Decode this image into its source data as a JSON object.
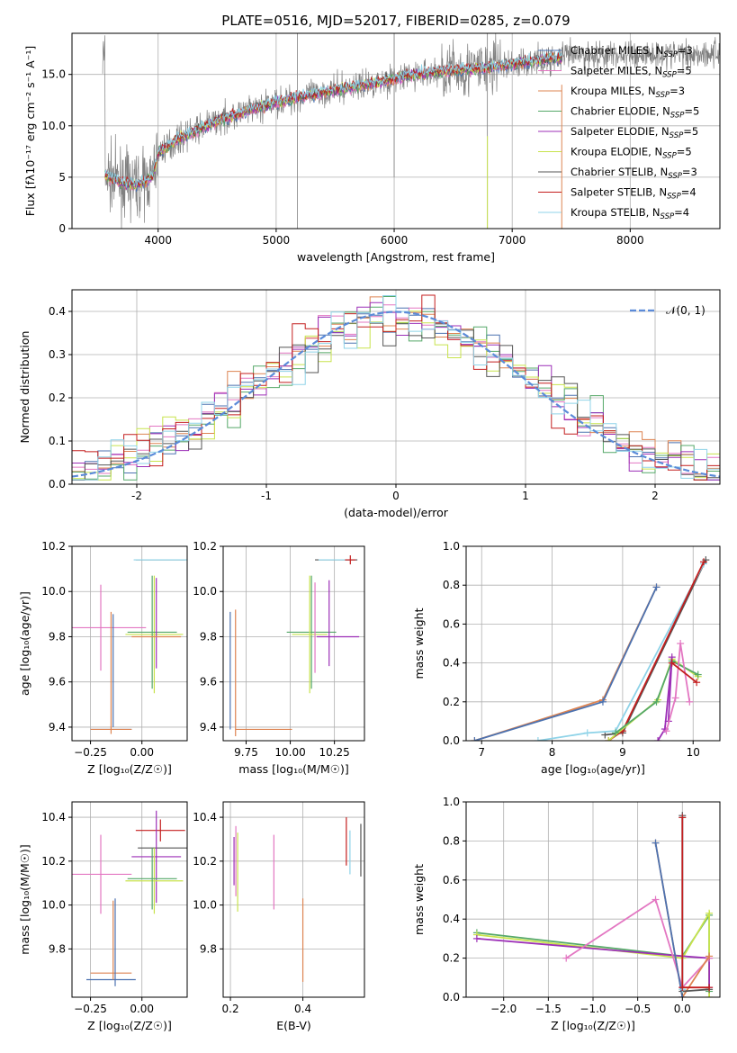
{
  "figure_title": "PLATE=0516, MJD=52017, FIBERID=0285, z=0.079",
  "colors": {
    "ChabrierMILES": "#4c72b0",
    "SalpeterMILES": "#e377c2",
    "KroupaMILES": "#dd8452",
    "ChabrierELODIE": "#55a868",
    "SalpeterELODIE": "#9c2fb7",
    "KroupaELODIE": "#c8e34d",
    "ChabrierSTELIB": "#555555",
    "SalpeterSTELIB": "#c41e1e",
    "KroupaSTELIB": "#8fd3e8",
    "data": "#808080",
    "normal": "#5b8bd9"
  },
  "models": [
    {
      "key": "ChabrierMILES",
      "label": "Chabrier MILES, N",
      "n": "=3"
    },
    {
      "key": "SalpeterMILES",
      "label": "Salpeter MILES, N",
      "n": "=5"
    },
    {
      "key": "KroupaMILES",
      "label": "Kroupa MILES, N",
      "n": "=3"
    },
    {
      "key": "ChabrierELODIE",
      "label": "Chabrier ELODIE, N",
      "n": "=5"
    },
    {
      "key": "SalpeterELODIE",
      "label": "Salpeter ELODIE, N",
      "n": "=5"
    },
    {
      "key": "KroupaELODIE",
      "label": "Kroupa ELODIE, N",
      "n": "=5"
    },
    {
      "key": "ChabrierSTELIB",
      "label": "Chabrier STELIB, N",
      "n": "=3"
    },
    {
      "key": "SalpeterSTELIB",
      "label": "Salpeter STELIB, N",
      "n": "=4"
    },
    {
      "key": "KroupaSTELIB",
      "label": "Kroupa STELIB, N",
      "n": "=4"
    }
  ],
  "legend_sub": "SSP",
  "chart_data": [
    {
      "id": "spectrum",
      "type": "line",
      "xlabel": "wavelength [Angstrom, rest frame]",
      "ylabel": "Flux [fλ10⁻¹⁷ erg cm⁻² s⁻¹ A⁻¹]",
      "xlim": [
        3270,
        8760
      ],
      "ylim": [
        0,
        19
      ],
      "xticks": [
        4000,
        5000,
        6000,
        7000,
        8000
      ],
      "yticks": [
        0,
        5,
        10,
        15
      ],
      "legend": "top-right",
      "continuum": {
        "x": [
          3550,
          3700,
          3850,
          3950,
          4000,
          4150,
          4300,
          4500,
          4750,
          5000,
          5250,
          5500,
          5750,
          6000,
          6250,
          6500,
          6750,
          7000,
          7250,
          7420
        ],
        "y": [
          5.2,
          4.4,
          4.3,
          5.0,
          7.4,
          8.6,
          9.4,
          10.5,
          11.4,
          12.3,
          12.9,
          13.5,
          14.0,
          14.6,
          15.1,
          15.4,
          15.6,
          16.0,
          16.4,
          16.6
        ]
      },
      "model_range": [
        3550,
        7420
      ],
      "data_range": [
        3530,
        8760
      ]
    },
    {
      "id": "residuals",
      "type": "bar",
      "xlabel": "(data-model)/error",
      "ylabel": "Normed distribution",
      "xlim": [
        -2.5,
        2.5
      ],
      "ylim": [
        0,
        0.45
      ],
      "xticks": [
        -2,
        -1,
        0,
        1,
        2
      ],
      "yticks": [
        0.0,
        0.1,
        0.2,
        0.3,
        0.4
      ],
      "legend_label": "𝒩(0, 1)",
      "bin_width": 0.1
    },
    {
      "id": "age-vs-Z",
      "type": "scatter",
      "xlabel": "Z [log₁₀(Z/Z☉)]",
      "ylabel": "age  [log₁₀(age/yr)]",
      "xlim": [
        -0.34,
        0.22
      ],
      "ylim": [
        9.34,
        10.2
      ],
      "xticks": [
        -0.25,
        0.0
      ],
      "xticklabels": [
        "−0.25",
        "0.00"
      ],
      "yticks": [
        9.4,
        9.6,
        9.8,
        10.0,
        10.2
      ],
      "points": [
        {
          "m": "SalpeterMILES",
          "x": -0.2,
          "y": 9.84,
          "xe": 0.22,
          "ye": 0.19
        },
        {
          "m": "ChabrierMILES",
          "x": -0.15,
          "y": 9.39,
          "xe": 0.1,
          "ye": 0
        },
        {
          "m": "KroupaMILES",
          "x": -0.15,
          "y": 9.39,
          "xe": 0.1,
          "ye": 0
        },
        {
          "m": "ChabrierMILES",
          "x": -0.14,
          "y": 9.65,
          "xe": 0,
          "ye": 0.25
        },
        {
          "m": "KroupaMILES",
          "x": -0.15,
          "y": 9.64,
          "xe": 0,
          "ye": 0.27
        },
        {
          "m": "ChabrierSTELIB",
          "x": 0.09,
          "y": 10.14,
          "xe": 0.12,
          "ye": 0
        },
        {
          "m": "KroupaSTELIB",
          "x": 0.09,
          "y": 10.14,
          "xe": 0.13,
          "ye": 0
        },
        {
          "m": "KroupaELODIE",
          "x": 0.06,
          "y": 9.81,
          "xe": 0.14,
          "ye": 0.26
        },
        {
          "m": "ChabrierELODIE",
          "x": 0.05,
          "y": 9.82,
          "xe": 0.12,
          "ye": 0.25
        },
        {
          "m": "SalpeterELODIE",
          "x": 0.07,
          "y": 9.86,
          "xe": 0,
          "ye": 0.2
        },
        {
          "m": "KroupaMILES",
          "x": 0.07,
          "y": 9.8,
          "xe": 0.12,
          "ye": 0
        }
      ]
    },
    {
      "id": "age-vs-mass",
      "type": "scatter",
      "xlabel": "mass [log₁₀(M/M☉)]",
      "ylabel": "",
      "xlim": [
        9.62,
        10.42
      ],
      "ylim": [
        9.34,
        10.2
      ],
      "xticks": [
        9.75,
        10.0,
        10.25
      ],
      "xticklabels": [
        "9.75",
        "10.00",
        "10.25"
      ],
      "yticks": [
        9.4,
        9.6,
        9.8,
        10.0,
        10.2
      ],
      "points": [
        {
          "m": "ChabrierMILES",
          "x": 9.66,
          "y": 9.65,
          "xe": 0,
          "ye": 0.26
        },
        {
          "m": "KroupaMILES",
          "x": 9.69,
          "y": 9.64,
          "xe": 0,
          "ye": 0.28
        },
        {
          "m": "KroupaMILES",
          "x": 9.85,
          "y": 9.39,
          "xe": 0.16,
          "ye": 0
        },
        {
          "m": "ChabrierELODIE",
          "x": 10.12,
          "y": 9.82,
          "xe": 0.14,
          "ye": 0.25
        },
        {
          "m": "KroupaELODIE",
          "x": 10.11,
          "y": 9.81,
          "xe": 0.1,
          "ye": 0.26
        },
        {
          "m": "SalpeterMILES",
          "x": 10.14,
          "y": 9.84,
          "xe": 0,
          "ye": 0.2
        },
        {
          "m": "SalpeterELODIE",
          "x": 10.22,
          "y": 9.86,
          "xe": 0,
          "ye": 0.19
        },
        {
          "m": "SalpeterELODIE",
          "x": 10.27,
          "y": 9.8,
          "xe": 0.12,
          "ye": 0
        },
        {
          "m": "ChabrierSTELIB",
          "x": 10.26,
          "y": 10.14,
          "xe": 0.12,
          "ye": 0
        },
        {
          "m": "KroupaSTELIB",
          "x": 10.26,
          "y": 10.14,
          "xe": 0.1,
          "ye": 0
        },
        {
          "m": "SalpeterSTELIB",
          "x": 10.34,
          "y": 10.14,
          "xe": 0.03,
          "ye": 0.02
        }
      ]
    },
    {
      "id": "mass-weight-vs-age",
      "type": "line",
      "xlabel": "age  [log₁₀(age/yr)]",
      "ylabel": "mass weight",
      "xlim": [
        6.78,
        10.38
      ],
      "ylim": [
        0,
        1.0
      ],
      "xticks": [
        7,
        8,
        9,
        10
      ],
      "yticks": [
        0.0,
        0.2,
        0.4,
        0.6,
        0.8,
        1.0
      ],
      "series": [
        {
          "m": "KroupaMILES",
          "x": [
            6.9,
            8.72,
            9.48
          ],
          "y": [
            0.0,
            0.21,
            0.79
          ]
        },
        {
          "m": "ChabrierMILES",
          "x": [
            6.9,
            8.72,
            9.48
          ],
          "y": [
            0.0,
            0.2,
            0.79
          ]
        },
        {
          "m": "ChabrierSTELIB",
          "x": [
            8.75,
            9.0,
            10.18
          ],
          "y": [
            0.03,
            0.04,
            0.93
          ]
        },
        {
          "m": "KroupaSTELIB",
          "x": [
            7.8,
            8.5,
            8.9,
            10.15
          ],
          "y": [
            0.0,
            0.04,
            0.05,
            0.91
          ]
        },
        {
          "m": "SalpeterSTELIB",
          "x": [
            8.8,
            9.0,
            10.15
          ],
          "y": [
            0.0,
            0.05,
            0.92
          ]
        },
        {
          "m": "KroupaELODIE",
          "x": [
            8.8,
            9.5,
            9.7,
            10.07
          ],
          "y": [
            0.0,
            0.21,
            0.42,
            0.33
          ]
        },
        {
          "m": "ChabrierELODIE",
          "x": [
            8.9,
            9.48,
            9.7,
            10.07
          ],
          "y": [
            0.04,
            0.2,
            0.41,
            0.34
          ]
        },
        {
          "m": "SalpeterELODIE",
          "x": [
            9.5,
            9.6,
            9.7,
            9.65
          ],
          "y": [
            0.0,
            0.06,
            0.43,
            0.1
          ]
        },
        {
          "m": "SalpeterMILES",
          "x": [
            9.62,
            9.75,
            9.82,
            9.95
          ],
          "y": [
            0.05,
            0.22,
            0.5,
            0.2
          ]
        },
        {
          "m": "SalpeterSTELIB",
          "x": [
            9.7,
            10.05
          ],
          "y": [
            0.4,
            0.3
          ]
        }
      ]
    },
    {
      "id": "mass-vs-Z",
      "type": "scatter",
      "xlabel": "Z [log₁₀(Z/Z☉)]",
      "ylabel": "mass [log₁₀(M/M☉)]",
      "xlim": [
        -0.34,
        0.22
      ],
      "ylim": [
        9.58,
        10.47
      ],
      "xticks": [
        -0.25,
        0.0
      ],
      "xticklabels": [
        "−0.25",
        "0.00"
      ],
      "yticks": [
        9.8,
        10.0,
        10.2,
        10.4
      ],
      "points": [
        {
          "m": "SalpeterMILES",
          "x": -0.2,
          "y": 10.14,
          "xe": 0.15,
          "ye": 0.18
        },
        {
          "m": "KroupaMILES",
          "x": -0.15,
          "y": 9.69,
          "xe": 0.1,
          "ye": 0
        },
        {
          "m": "ChabrierMILES",
          "x": -0.15,
          "y": 9.66,
          "xe": 0.12,
          "ye": 0
        },
        {
          "m": "KroupaMILES",
          "x": -0.14,
          "y": 9.84,
          "xe": 0,
          "ye": 0.18
        },
        {
          "m": "ChabrierMILES",
          "x": -0.13,
          "y": 9.83,
          "xe": 0,
          "ye": 0.2
        },
        {
          "m": "SalpeterSTELIB",
          "x": 0.09,
          "y": 10.34,
          "xe": 0.12,
          "ye": 0.05
        },
        {
          "m": "ChabrierSTELIB",
          "x": 0.1,
          "y": 10.26,
          "xe": 0.12,
          "ye": 0
        },
        {
          "m": "SalpeterELODIE",
          "x": 0.07,
          "y": 10.22,
          "xe": 0.12,
          "ye": 0.21
        },
        {
          "m": "KroupaELODIE",
          "x": 0.06,
          "y": 10.11,
          "xe": 0.14,
          "ye": 0.15
        },
        {
          "m": "ChabrierELODIE",
          "x": 0.05,
          "y": 10.12,
          "xe": 0.12,
          "ye": 0.14
        }
      ]
    },
    {
      "id": "mass-vs-EBV",
      "type": "scatter",
      "xlabel": "E(B-V)",
      "ylabel": "",
      "xlim": [
        0.18,
        0.57
      ],
      "ylim": [
        9.58,
        10.47
      ],
      "xticks": [
        0.2,
        0.4
      ],
      "xticklabels": [
        "0.2",
        "0.4"
      ],
      "yticks": [
        9.8,
        10.0,
        10.2,
        10.4
      ],
      "points": [
        {
          "m": "SalpeterELODIE",
          "x": 0.21,
          "y": 10.2,
          "xe": 0,
          "ye": 0.11
        },
        {
          "m": "SalpeterMILES",
          "x": 0.215,
          "y": 10.2,
          "xe": 0,
          "ye": 0.16
        },
        {
          "m": "KroupaELODIE",
          "x": 0.22,
          "y": 10.15,
          "xe": 0,
          "ye": 0.18
        },
        {
          "m": "SalpeterMILES",
          "x": 0.32,
          "y": 10.15,
          "xe": 0,
          "ye": 0.17
        },
        {
          "m": "KroupaMILES",
          "x": 0.4,
          "y": 9.84,
          "xe": 0,
          "ye": 0.19
        },
        {
          "m": "SalpeterSTELIB",
          "x": 0.52,
          "y": 10.29,
          "xe": 0,
          "ye": 0.11
        },
        {
          "m": "KroupaSTELIB",
          "x": 0.53,
          "y": 10.24,
          "xe": 0,
          "ye": 0.1
        },
        {
          "m": "ChabrierSTELIB",
          "x": 0.56,
          "y": 10.25,
          "xe": 0,
          "ye": 0.12
        }
      ]
    },
    {
      "id": "mass-weight-vs-Z",
      "type": "line",
      "xlabel": "Z [log₁₀(Z/Z☉)]",
      "ylabel": "mass weight",
      "xlim": [
        -2.42,
        0.42
      ],
      "ylim": [
        0,
        1.0
      ],
      "xticks": [
        -2.0,
        -1.5,
        -1.0,
        -0.5,
        0.0
      ],
      "xticklabels": [
        "−2.0",
        "−1.5",
        "−1.0",
        "−0.5",
        "0.0"
      ],
      "yticks": [
        0.0,
        0.2,
        0.4,
        0.6,
        0.8,
        1.0
      ],
      "series": [
        {
          "m": "ChabrierELODIE",
          "x": [
            -2.3,
            0.0,
            0.3,
            0.3
          ],
          "y": [
            0.33,
            0.21,
            0.42,
            0.03
          ]
        },
        {
          "m": "KroupaELODIE",
          "x": [
            -2.3,
            0.0,
            0.3,
            0.3
          ],
          "y": [
            0.32,
            0.2,
            0.43,
            0.0
          ]
        },
        {
          "m": "SalpeterELODIE",
          "x": [
            -2.3,
            0.0,
            0.3,
            0.3
          ],
          "y": [
            0.3,
            0.21,
            0.2,
            0.05
          ]
        },
        {
          "m": "SalpeterMILES",
          "x": [
            -1.3,
            -0.3,
            0.0,
            0.3
          ],
          "y": [
            0.2,
            0.5,
            0.05,
            0.2
          ]
        },
        {
          "m": "KroupaMILES",
          "x": [
            -0.3,
            0.0,
            0.3
          ],
          "y": [
            0.79,
            0.0,
            0.21
          ]
        },
        {
          "m": "ChabrierMILES",
          "x": [
            -0.3,
            0.0
          ],
          "y": [
            0.79,
            0.0
          ]
        },
        {
          "m": "ChabrierSTELIB",
          "x": [
            0.0,
            0.0,
            0.3
          ],
          "y": [
            0.93,
            0.03,
            0.04
          ]
        },
        {
          "m": "KroupaSTELIB",
          "x": [
            0.0,
            0.0
          ],
          "y": [
            0.92,
            0.04
          ]
        },
        {
          "m": "SalpeterSTELIB",
          "x": [
            0.0,
            0.0,
            0.3
          ],
          "y": [
            0.92,
            0.05,
            0.05
          ]
        }
      ]
    }
  ]
}
